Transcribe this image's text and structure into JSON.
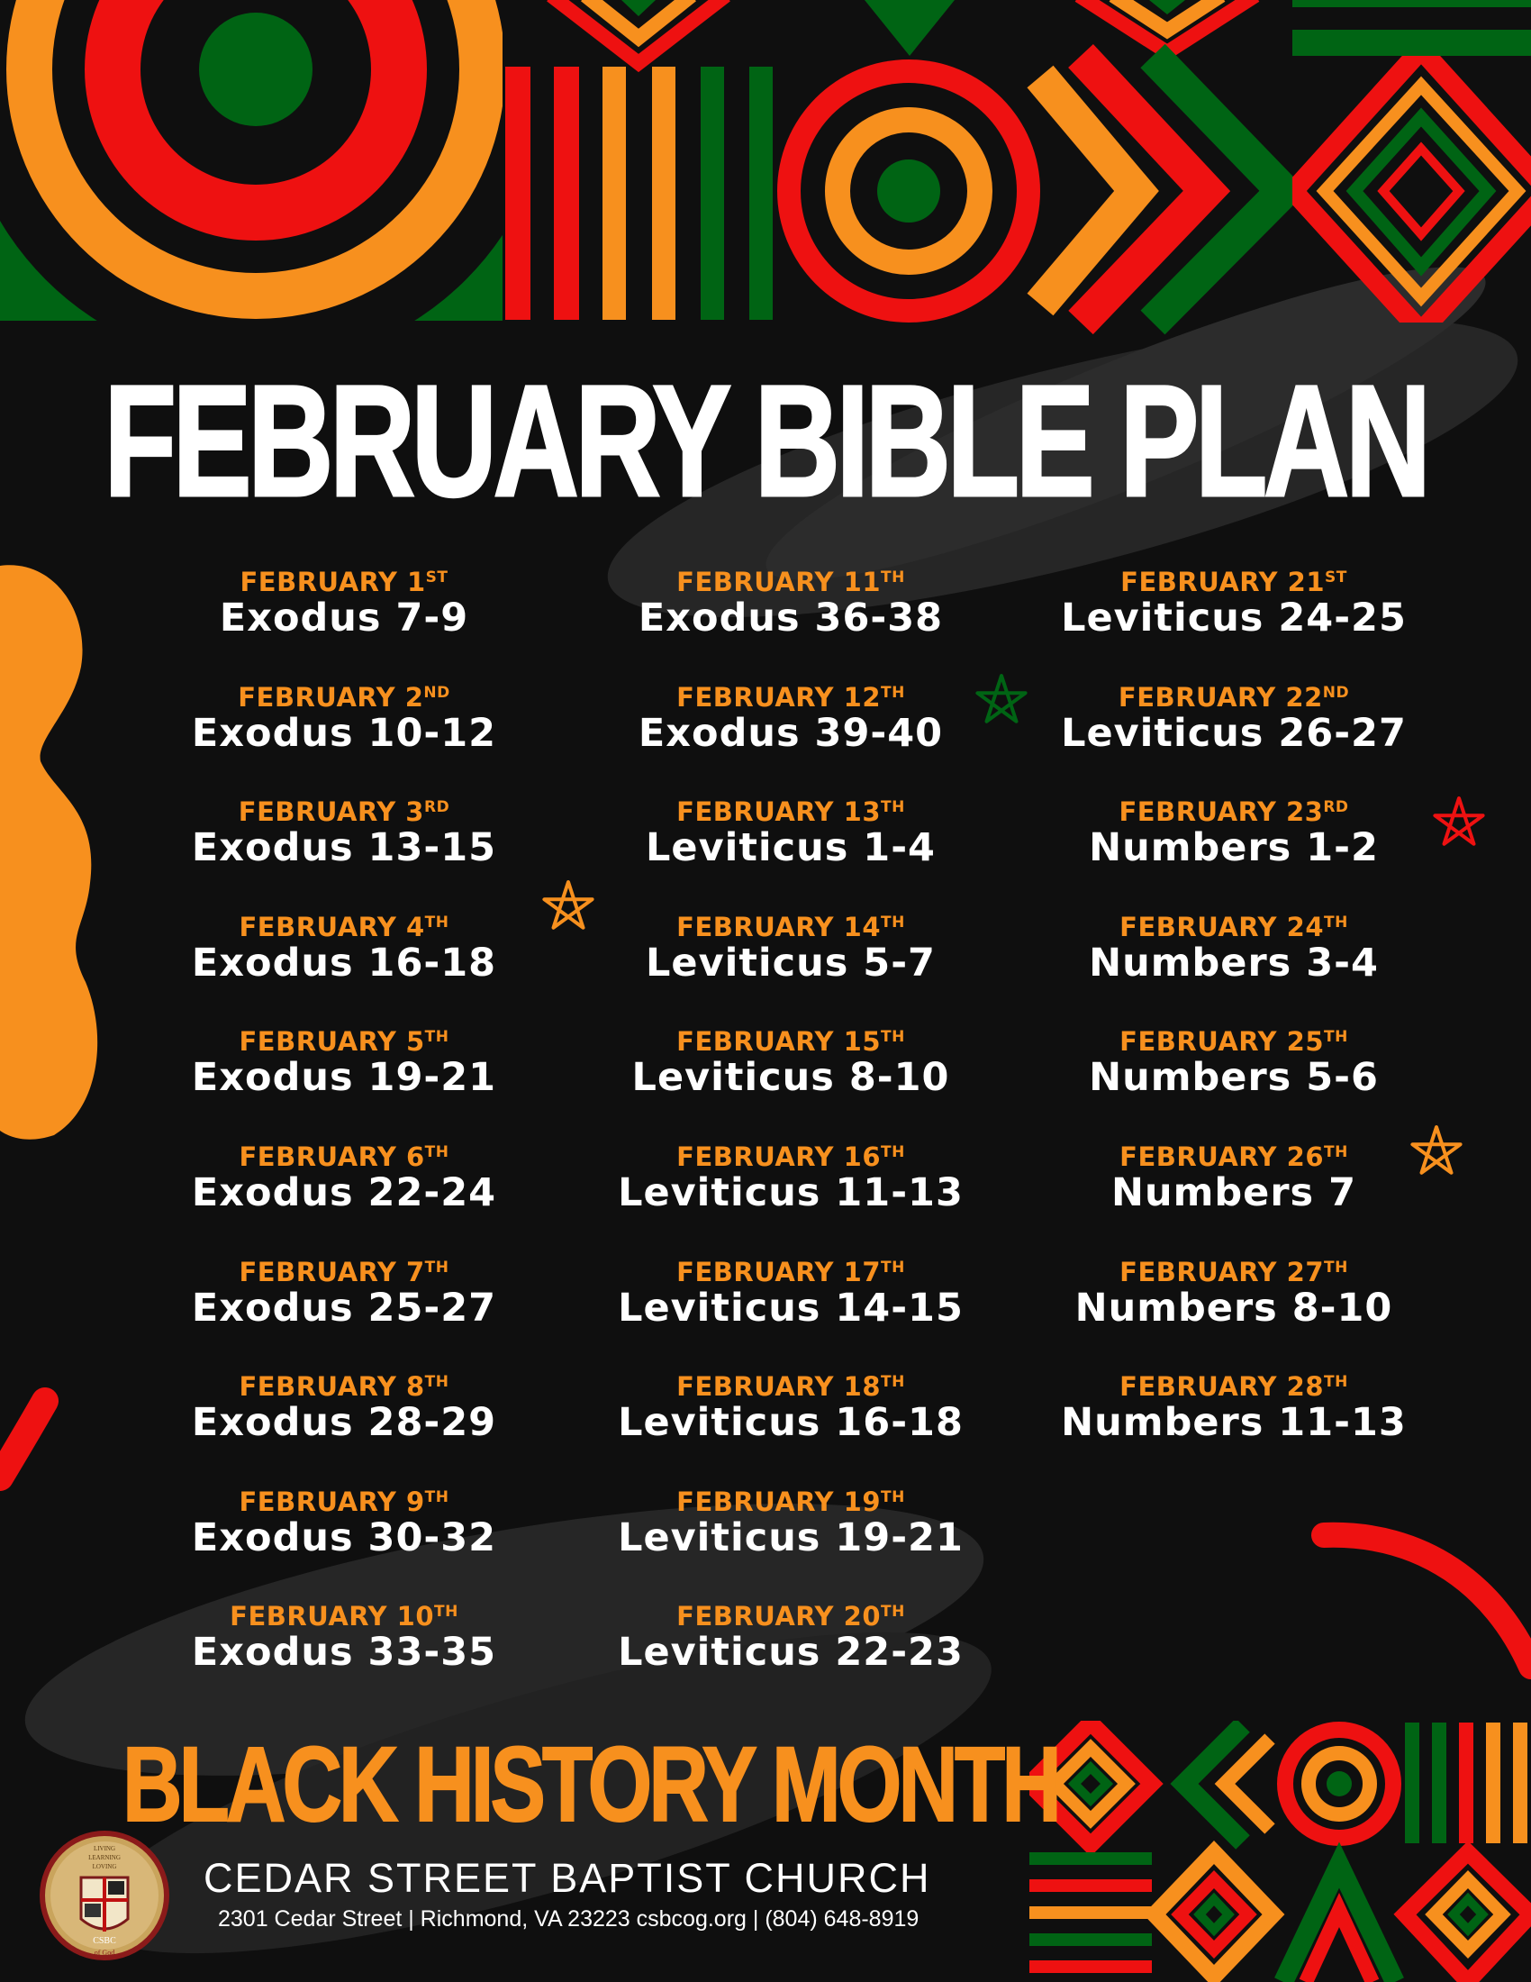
{
  "title": "FEBRUARY BIBLE PLAN",
  "colors": {
    "background": "#0f0f0f",
    "orange": "#f7901e",
    "red": "#ee1111",
    "green": "#006414",
    "white": "#ffffff",
    "swoosh": "#262626"
  },
  "columns": [
    [
      {
        "date": "FEBRUARY 1",
        "suffix": "ST",
        "reading": "Exodus 7-9"
      },
      {
        "date": "FEBRUARY 2",
        "suffix": "ND",
        "reading": "Exodus 10-12"
      },
      {
        "date": "FEBRUARY 3",
        "suffix": "RD",
        "reading": "Exodus 13-15"
      },
      {
        "date": "FEBRUARY 4",
        "suffix": "TH",
        "reading": "Exodus 16-18"
      },
      {
        "date": "FEBRUARY 5",
        "suffix": "TH",
        "reading": "Exodus 19-21"
      },
      {
        "date": "FEBRUARY 6",
        "suffix": "TH",
        "reading": "Exodus 22-24"
      },
      {
        "date": "FEBRUARY 7",
        "suffix": "TH",
        "reading": "Exodus 25-27"
      },
      {
        "date": "FEBRUARY 8",
        "suffix": "TH",
        "reading": "Exodus 28-29"
      },
      {
        "date": "FEBRUARY 9",
        "suffix": "TH",
        "reading": "Exodus 30-32"
      },
      {
        "date": "FEBRUARY 10",
        "suffix": "TH",
        "reading": "Exodus 33-35"
      }
    ],
    [
      {
        "date": "FEBRUARY 11",
        "suffix": "TH",
        "reading": "Exodus 36-38"
      },
      {
        "date": "FEBRUARY 12",
        "suffix": "TH",
        "reading": "Exodus 39-40"
      },
      {
        "date": "FEBRUARY 13",
        "suffix": "TH",
        "reading": "Leviticus 1-4"
      },
      {
        "date": "FEBRUARY 14",
        "suffix": "TH",
        "reading": "Leviticus 5-7"
      },
      {
        "date": "FEBRUARY 15",
        "suffix": "TH",
        "reading": "Leviticus 8-10"
      },
      {
        "date": "FEBRUARY 16",
        "suffix": "TH",
        "reading": "Leviticus 11-13"
      },
      {
        "date": "FEBRUARY 17",
        "suffix": "TH",
        "reading": "Leviticus 14-15"
      },
      {
        "date": "FEBRUARY 18",
        "suffix": "TH",
        "reading": "Leviticus 16-18"
      },
      {
        "date": "FEBRUARY 19",
        "suffix": "TH",
        "reading": "Leviticus 19-21"
      },
      {
        "date": "FEBRUARY 20",
        "suffix": "TH",
        "reading": "Leviticus 22-23"
      }
    ],
    [
      {
        "date": "FEBRUARY 21",
        "suffix": "ST",
        "reading": "Leviticus 24-25"
      },
      {
        "date": "FEBRUARY 22",
        "suffix": "ND",
        "reading": "Leviticus 26-27"
      },
      {
        "date": "FEBRUARY 23",
        "suffix": "RD",
        "reading": "Numbers 1-2"
      },
      {
        "date": "FEBRUARY 24",
        "suffix": "TH",
        "reading": "Numbers 3-4"
      },
      {
        "date": "FEBRUARY 25",
        "suffix": "TH",
        "reading": "Numbers 5-6"
      },
      {
        "date": "FEBRUARY 26",
        "suffix": "TH",
        "reading": "Numbers 7"
      },
      {
        "date": "FEBRUARY 27",
        "suffix": "TH",
        "reading": "Numbers 8-10"
      },
      {
        "date": "FEBRUARY 28",
        "suffix": "TH",
        "reading": "Numbers 11-13"
      }
    ]
  ],
  "footer": {
    "banner": "BLACK HISTORY MONTH",
    "church_name": "CEDAR STREET BAPTIST CHURCH",
    "address": "2301 Cedar Street | Richmond, VA 23223  csbcog.org  |  (804) 648-8919",
    "logo_text": [
      "LIVING",
      "LEARNING",
      "LOVING",
      "CSBC",
      "of God"
    ]
  },
  "icons": [
    "star-icon"
  ]
}
